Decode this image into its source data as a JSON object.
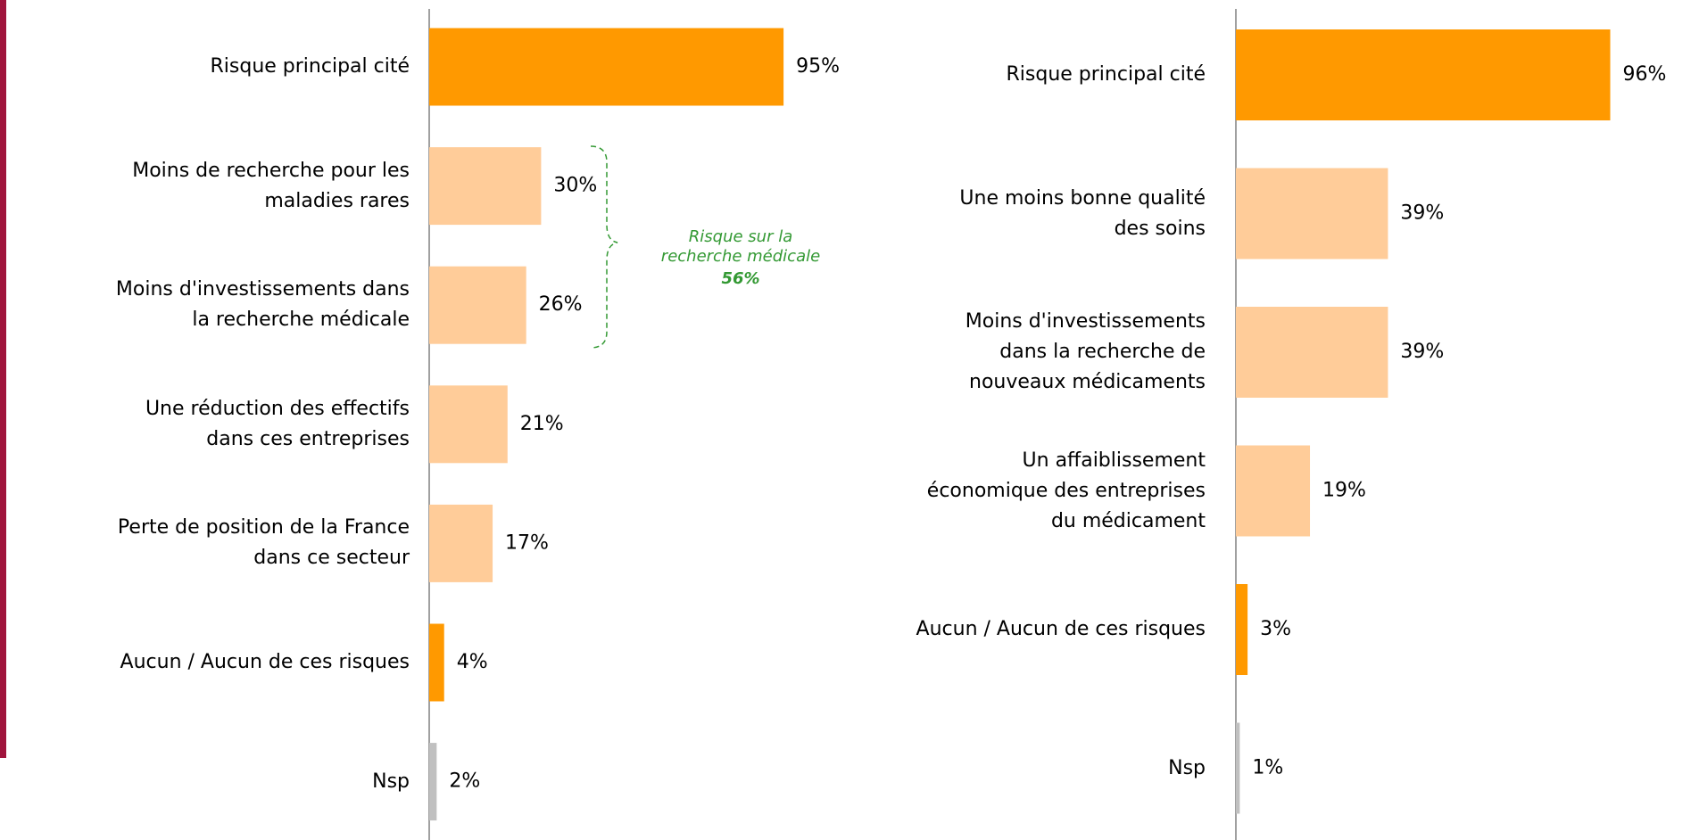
{
  "chart_data": [
    {
      "type": "bar",
      "orientation": "horizontal",
      "categories": [
        "Risque principal cité",
        "Moins de recherche pour les\nmaladies rares",
        "Moins d'investissements dans\nla recherche médicale",
        "Une réduction des effectifs\ndans ces entreprises",
        "Perte de position de la France\ndans ce secteur",
        "Aucun / Aucun de ces risques",
        "Nsp"
      ],
      "values": [
        95,
        30,
        26,
        21,
        17,
        4,
        2
      ],
      "value_labels": [
        "95%",
        "30%",
        "26%",
        "21%",
        "17%",
        "4%",
        "2%"
      ],
      "colors": [
        "#ff9900",
        "#ffcc99",
        "#ffcc99",
        "#ffcc99",
        "#ffcc99",
        "#ff9900",
        "#c0c0c0"
      ],
      "annotation": {
        "text": "Risque sur la\nrecherche médicale",
        "label": "56%",
        "color": "#339933"
      }
    },
    {
      "type": "bar",
      "orientation": "horizontal",
      "categories": [
        "Risque principal cité",
        "Une moins bonne qualité\ndes soins",
        "Moins d'investissements\ndans la recherche de\nnouveaux médicaments",
        "Un affaiblissement\néconomique des entreprises\ndu médicament",
        "Aucun / Aucun de ces risques",
        "Nsp"
      ],
      "values": [
        96,
        39,
        39,
        19,
        3,
        1
      ],
      "value_labels": [
        "96%",
        "39%",
        "39%",
        "19%",
        "3%",
        "1%"
      ],
      "colors": [
        "#ff9900",
        "#ffcc99",
        "#ffcc99",
        "#ffcc99",
        "#ff9900",
        "#c0c0c0"
      ]
    }
  ]
}
